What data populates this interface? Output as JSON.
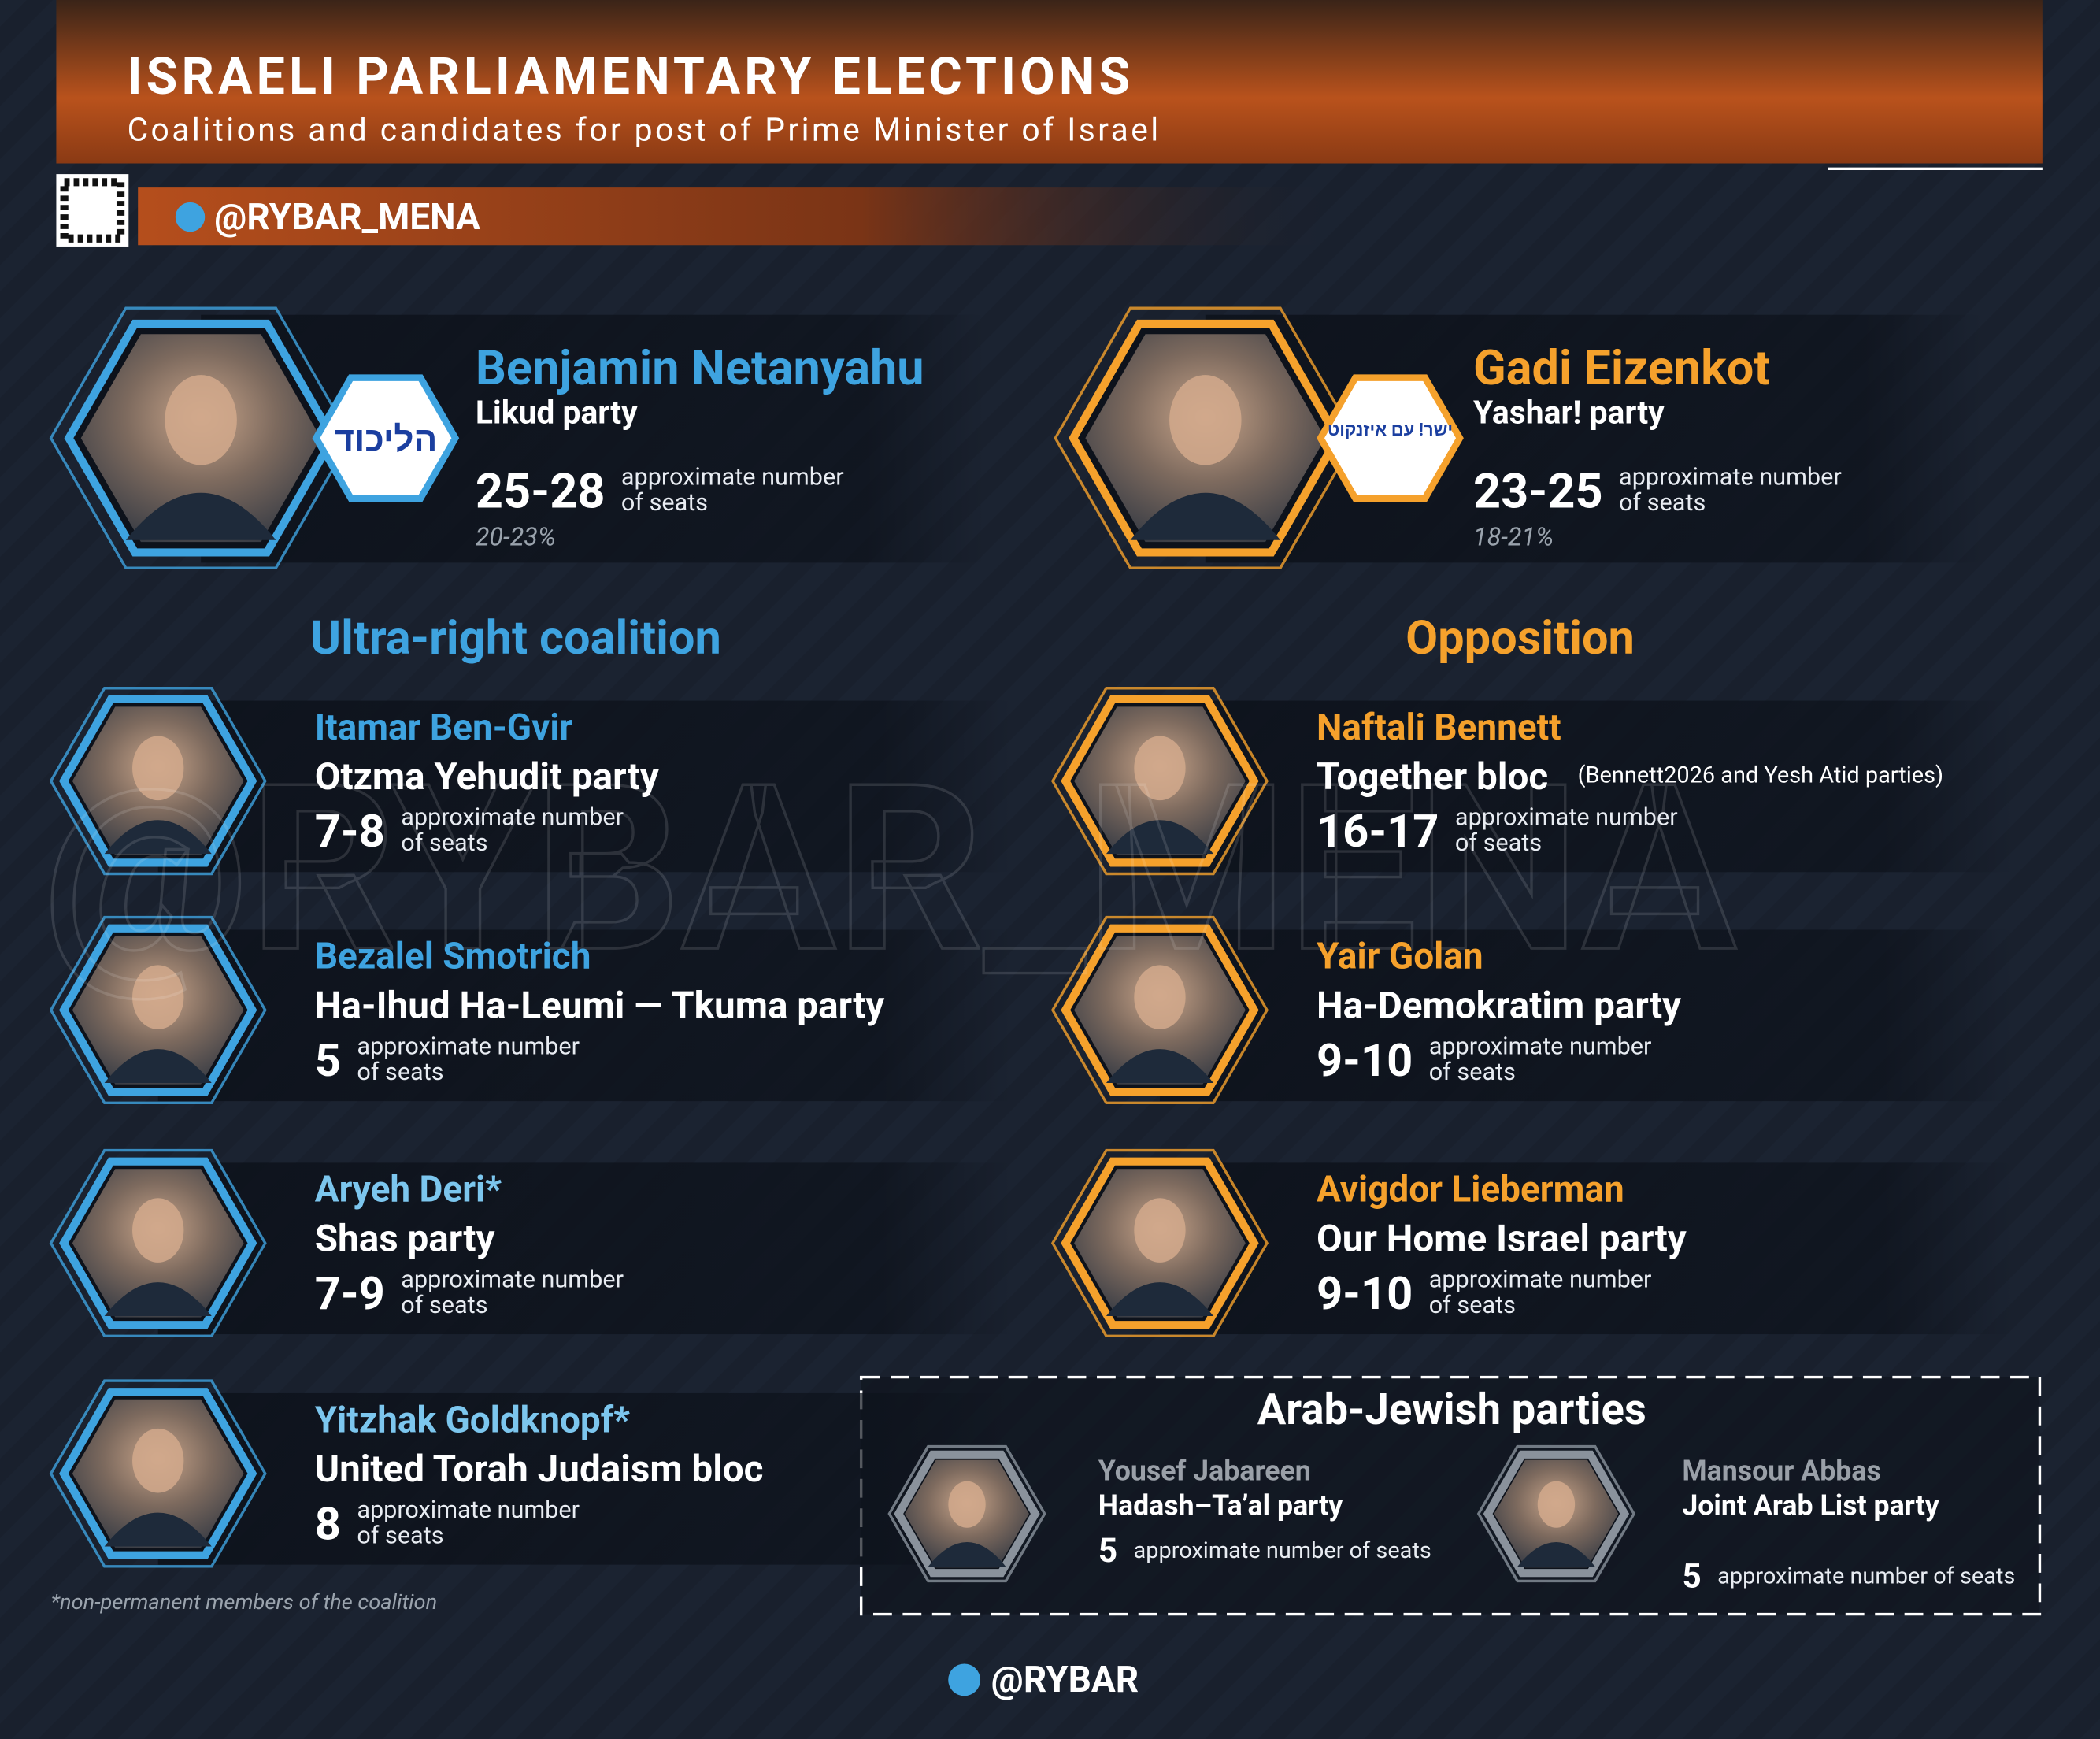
{
  "header": {
    "title": "ISRAELI PARLIAMENTARY ELECTIONS",
    "subtitle": "Coalitions and candidates for post of Prime Minister of Israel",
    "handle": "@RYBAR_MENA"
  },
  "watermark": "@RYBAR_MENA",
  "leaders": [
    {
      "name": "Benjamin Netanyahu",
      "party": "Likud party",
      "logo": "הליכוד",
      "seats": "25-28",
      "seats_note": "approximate number of seats",
      "share": "20-23%"
    },
    {
      "name": "Gadi Eizenkot",
      "party": "Yashar! party",
      "logo": "ישר! עם איזנקוט",
      "seats": "23-25",
      "seats_note": "approximate number of seats",
      "share": "18-21%"
    }
  ],
  "coalition": {
    "title": "Ultra-right coalition",
    "members": [
      {
        "name": "Itamar Ben-Gvir",
        "party": "Otzma Yehudit party",
        "seats": "7-8",
        "seats_note": "approximate number of seats"
      },
      {
        "name": "Bezalel Smotrich",
        "party": "Ha-Ihud Ha-Leumi — Tkuma party",
        "seats": "5",
        "seats_note": "approximate number of seats"
      },
      {
        "name": "Aryeh Deri*",
        "party": "Shas party",
        "seats": "7-9",
        "seats_note": "approximate number of seats"
      },
      {
        "name": "Yitzhak Goldknopf*",
        "party": "United Torah Judaism bloc",
        "seats": "8",
        "seats_note": "approximate number of seats"
      }
    ]
  },
  "opposition": {
    "title": "Opposition",
    "members": [
      {
        "name": "Naftali Bennett",
        "party": "Together bloc",
        "party_note": "(Bennett2026 and Yesh Atid parties)",
        "seats": "16-17",
        "seats_note": "approximate number of seats"
      },
      {
        "name": "Yair Golan",
        "party": "Ha-Demokratim party",
        "seats": "9-10",
        "seats_note": "approximate number of seats"
      },
      {
        "name": "Avigdor Lieberman",
        "party": "Our Home Israel party",
        "seats": "9-10",
        "seats_note": "approximate number of seats"
      }
    ]
  },
  "arab_jewish": {
    "title": "Arab-Jewish parties",
    "members": [
      {
        "name": "Yousef Jabareen",
        "party": "Hadash–Ta’al party",
        "seats": "5",
        "seats_note": "approximate number of seats"
      },
      {
        "name": "Mansour Abbas",
        "party": "Joint Arab List party",
        "seats": "5",
        "seats_note": "approximate number of seats"
      }
    ]
  },
  "footnote": "*non-permanent members of the coalition",
  "footer": {
    "handle": "@RYBAR"
  }
}
